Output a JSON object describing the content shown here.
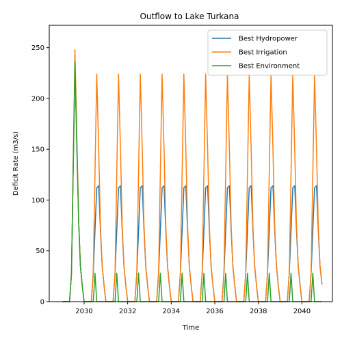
{
  "chart_data": {
    "type": "line",
    "title": "Outflow to Lake Turkana",
    "xlabel": "Time",
    "ylabel": "Deficit Rate (m3/s)",
    "xlim": [
      2028.4,
      2041.4
    ],
    "ylim": [
      0,
      272
    ],
    "xticks": [
      2030,
      2032,
      2034,
      2036,
      2038,
      2040
    ],
    "yticks": [
      0,
      50,
      100,
      150,
      200,
      250
    ],
    "grid": false,
    "legend_position": "top-right",
    "series": [
      {
        "name": "Best Hydropower",
        "color": "#1f77b4",
        "points": [
          [
            2029.0,
            0
          ],
          [
            2029.33,
            0
          ],
          [
            2029.42,
            27
          ],
          [
            2029.58,
            235
          ],
          [
            2029.67,
            150
          ],
          [
            2029.75,
            80
          ],
          [
            2029.83,
            35
          ],
          [
            2029.92,
            15
          ],
          [
            2030.0,
            0
          ],
          [
            2030.33,
            0
          ],
          [
            2030.42,
            28
          ],
          [
            2030.58,
            112
          ],
          [
            2030.67,
            114
          ],
          [
            2030.75,
            70
          ],
          [
            2030.83,
            35
          ],
          [
            2030.92,
            15
          ],
          [
            2031.0,
            0
          ],
          [
            2031.33,
            0
          ],
          [
            2031.42,
            28
          ],
          [
            2031.58,
            112
          ],
          [
            2031.67,
            114
          ],
          [
            2031.75,
            70
          ],
          [
            2031.83,
            35
          ],
          [
            2031.92,
            15
          ],
          [
            2032.0,
            0
          ],
          [
            2032.33,
            0
          ],
          [
            2032.42,
            28
          ],
          [
            2032.58,
            112
          ],
          [
            2032.67,
            114
          ],
          [
            2032.75,
            70
          ],
          [
            2032.83,
            35
          ],
          [
            2032.92,
            15
          ],
          [
            2033.0,
            0
          ],
          [
            2033.33,
            0
          ],
          [
            2033.42,
            28
          ],
          [
            2033.58,
            112
          ],
          [
            2033.67,
            114
          ],
          [
            2033.75,
            70
          ],
          [
            2033.83,
            35
          ],
          [
            2033.92,
            15
          ],
          [
            2034.0,
            0
          ],
          [
            2034.33,
            0
          ],
          [
            2034.42,
            28
          ],
          [
            2034.58,
            112
          ],
          [
            2034.67,
            114
          ],
          [
            2034.75,
            70
          ],
          [
            2034.83,
            35
          ],
          [
            2034.92,
            15
          ],
          [
            2035.0,
            0
          ],
          [
            2035.33,
            0
          ],
          [
            2035.42,
            28
          ],
          [
            2035.58,
            112
          ],
          [
            2035.67,
            114
          ],
          [
            2035.75,
            70
          ],
          [
            2035.83,
            35
          ],
          [
            2035.92,
            15
          ],
          [
            2036.0,
            0
          ],
          [
            2036.33,
            0
          ],
          [
            2036.42,
            28
          ],
          [
            2036.58,
            112
          ],
          [
            2036.67,
            114
          ],
          [
            2036.75,
            70
          ],
          [
            2036.83,
            35
          ],
          [
            2036.92,
            15
          ],
          [
            2037.0,
            0
          ],
          [
            2037.33,
            0
          ],
          [
            2037.42,
            28
          ],
          [
            2037.58,
            112
          ],
          [
            2037.67,
            114
          ],
          [
            2037.75,
            70
          ],
          [
            2037.83,
            35
          ],
          [
            2037.92,
            15
          ],
          [
            2038.0,
            0
          ],
          [
            2038.33,
            0
          ],
          [
            2038.42,
            28
          ],
          [
            2038.58,
            112
          ],
          [
            2038.67,
            114
          ],
          [
            2038.75,
            70
          ],
          [
            2038.83,
            35
          ],
          [
            2038.92,
            15
          ],
          [
            2039.0,
            0
          ],
          [
            2039.33,
            0
          ],
          [
            2039.42,
            28
          ],
          [
            2039.58,
            112
          ],
          [
            2039.67,
            114
          ],
          [
            2039.75,
            70
          ],
          [
            2039.83,
            35
          ],
          [
            2039.92,
            15
          ],
          [
            2040.0,
            0
          ],
          [
            2040.33,
            0
          ],
          [
            2040.42,
            28
          ],
          [
            2040.58,
            112
          ],
          [
            2040.67,
            114
          ],
          [
            2040.75,
            70
          ],
          [
            2040.83,
            35
          ],
          [
            2040.92,
            17
          ]
        ]
      },
      {
        "name": "Best Irrigation",
        "color": "#ff7f0e",
        "points": [
          [
            2029.0,
            0
          ],
          [
            2029.33,
            0
          ],
          [
            2029.42,
            27
          ],
          [
            2029.58,
            248
          ],
          [
            2029.67,
            160
          ],
          [
            2029.75,
            80
          ],
          [
            2029.83,
            35
          ],
          [
            2029.92,
            15
          ],
          [
            2030.0,
            0
          ],
          [
            2030.33,
            0
          ],
          [
            2030.42,
            28
          ],
          [
            2030.58,
            224
          ],
          [
            2030.67,
            150
          ],
          [
            2030.75,
            75
          ],
          [
            2030.83,
            35
          ],
          [
            2030.92,
            15
          ],
          [
            2031.0,
            0
          ],
          [
            2031.33,
            0
          ],
          [
            2031.42,
            28
          ],
          [
            2031.58,
            224
          ],
          [
            2031.67,
            150
          ],
          [
            2031.75,
            75
          ],
          [
            2031.83,
            35
          ],
          [
            2031.92,
            15
          ],
          [
            2032.0,
            0
          ],
          [
            2032.33,
            0
          ],
          [
            2032.42,
            28
          ],
          [
            2032.58,
            224
          ],
          [
            2032.67,
            150
          ],
          [
            2032.75,
            75
          ],
          [
            2032.83,
            35
          ],
          [
            2032.92,
            15
          ],
          [
            2033.0,
            0
          ],
          [
            2033.33,
            0
          ],
          [
            2033.42,
            28
          ],
          [
            2033.58,
            224
          ],
          [
            2033.67,
            150
          ],
          [
            2033.75,
            75
          ],
          [
            2033.83,
            35
          ],
          [
            2033.92,
            15
          ],
          [
            2034.0,
            0
          ],
          [
            2034.33,
            0
          ],
          [
            2034.42,
            28
          ],
          [
            2034.58,
            224
          ],
          [
            2034.67,
            150
          ],
          [
            2034.75,
            75
          ],
          [
            2034.83,
            35
          ],
          [
            2034.92,
            15
          ],
          [
            2035.0,
            0
          ],
          [
            2035.33,
            0
          ],
          [
            2035.42,
            28
          ],
          [
            2035.58,
            224
          ],
          [
            2035.67,
            150
          ],
          [
            2035.75,
            75
          ],
          [
            2035.83,
            35
          ],
          [
            2035.92,
            15
          ],
          [
            2036.0,
            0
          ],
          [
            2036.33,
            0
          ],
          [
            2036.42,
            28
          ],
          [
            2036.58,
            224
          ],
          [
            2036.67,
            150
          ],
          [
            2036.75,
            75
          ],
          [
            2036.83,
            35
          ],
          [
            2036.92,
            15
          ],
          [
            2037.0,
            0
          ],
          [
            2037.33,
            0
          ],
          [
            2037.42,
            28
          ],
          [
            2037.58,
            224
          ],
          [
            2037.67,
            150
          ],
          [
            2037.75,
            75
          ],
          [
            2037.83,
            35
          ],
          [
            2037.92,
            15
          ],
          [
            2038.0,
            0
          ],
          [
            2038.33,
            0
          ],
          [
            2038.42,
            28
          ],
          [
            2038.58,
            224
          ],
          [
            2038.67,
            150
          ],
          [
            2038.75,
            75
          ],
          [
            2038.83,
            35
          ],
          [
            2038.92,
            15
          ],
          [
            2039.0,
            0
          ],
          [
            2039.33,
            0
          ],
          [
            2039.42,
            28
          ],
          [
            2039.58,
            224
          ],
          [
            2039.67,
            150
          ],
          [
            2039.75,
            75
          ],
          [
            2039.83,
            35
          ],
          [
            2039.92,
            15
          ],
          [
            2040.0,
            0
          ],
          [
            2040.33,
            0
          ],
          [
            2040.42,
            28
          ],
          [
            2040.58,
            224
          ],
          [
            2040.67,
            150
          ],
          [
            2040.75,
            75
          ],
          [
            2040.83,
            35
          ],
          [
            2040.92,
            17
          ]
        ]
      },
      {
        "name": "Best Environment",
        "color": "#2ca02c",
        "points": [
          [
            2029.0,
            0
          ],
          [
            2029.33,
            0
          ],
          [
            2029.42,
            27
          ],
          [
            2029.58,
            236
          ],
          [
            2029.67,
            150
          ],
          [
            2029.75,
            80
          ],
          [
            2029.83,
            35
          ],
          [
            2029.92,
            15
          ],
          [
            2030.0,
            0
          ],
          [
            2030.33,
            0
          ],
          [
            2030.42,
            0
          ],
          [
            2030.5,
            28
          ],
          [
            2030.58,
            0
          ],
          [
            2030.67,
            0
          ],
          [
            2031.42,
            0
          ],
          [
            2031.5,
            28
          ],
          [
            2031.58,
            0
          ],
          [
            2031.67,
            0
          ],
          [
            2032.42,
            0
          ],
          [
            2032.5,
            28
          ],
          [
            2032.58,
            0
          ],
          [
            2032.67,
            0
          ],
          [
            2033.42,
            0
          ],
          [
            2033.5,
            28
          ],
          [
            2033.58,
            0
          ],
          [
            2033.67,
            0
          ],
          [
            2034.42,
            0
          ],
          [
            2034.5,
            28
          ],
          [
            2034.58,
            0
          ],
          [
            2034.67,
            0
          ],
          [
            2035.42,
            0
          ],
          [
            2035.5,
            28
          ],
          [
            2035.58,
            0
          ],
          [
            2035.67,
            0
          ],
          [
            2036.42,
            0
          ],
          [
            2036.5,
            28
          ],
          [
            2036.58,
            0
          ],
          [
            2036.67,
            0
          ],
          [
            2037.42,
            0
          ],
          [
            2037.5,
            28
          ],
          [
            2037.58,
            0
          ],
          [
            2037.67,
            0
          ],
          [
            2038.42,
            0
          ],
          [
            2038.5,
            28
          ],
          [
            2038.58,
            0
          ],
          [
            2038.67,
            0
          ],
          [
            2039.42,
            0
          ],
          [
            2039.5,
            28
          ],
          [
            2039.58,
            0
          ],
          [
            2039.67,
            0
          ],
          [
            2040.42,
            0
          ],
          [
            2040.5,
            28
          ],
          [
            2040.58,
            0
          ],
          [
            2040.67,
            0
          ],
          [
            2040.92,
            0
          ]
        ]
      }
    ]
  }
}
